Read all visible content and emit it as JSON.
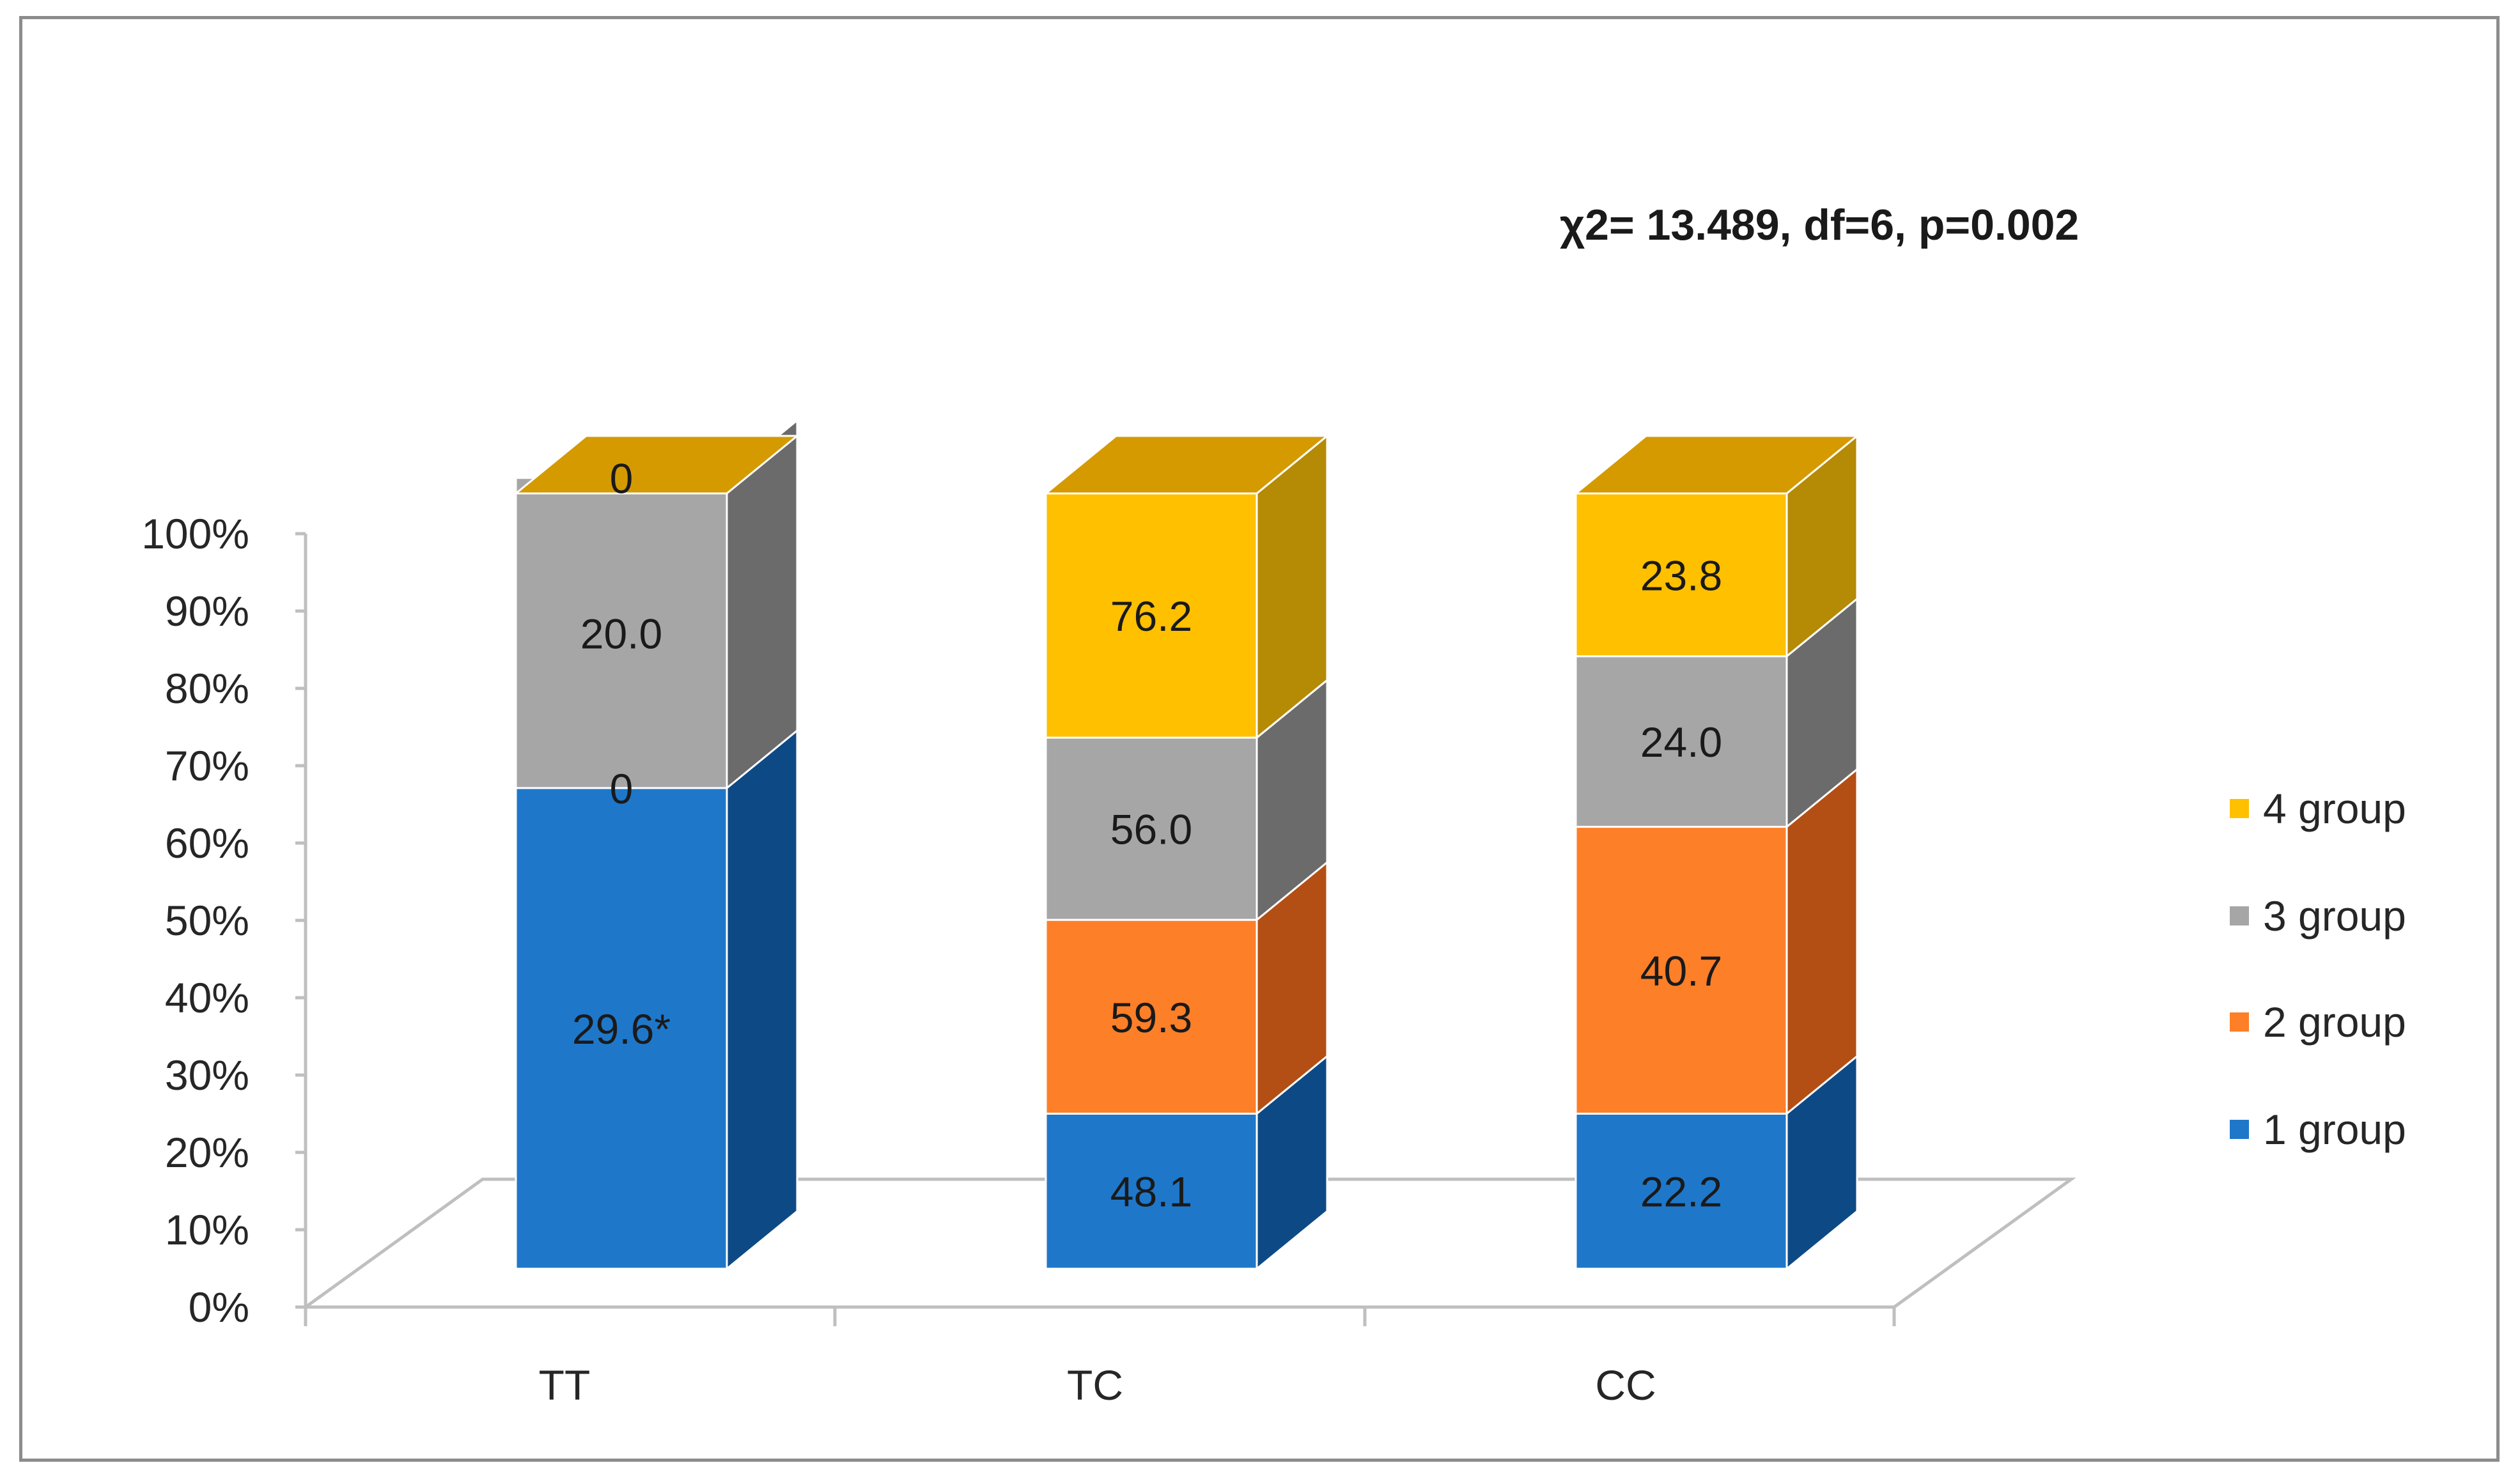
{
  "chart_data": {
    "type": "bar",
    "subtype": "stacked-100-percent-3d",
    "categories": [
      "TT",
      "TC",
      "CC"
    ],
    "series": [
      {
        "name": "1 group",
        "color": "#1f77c9",
        "side_color": "#0d4a85",
        "top_color": "#1668b0",
        "display_share": [
          62,
          20,
          20
        ],
        "labels": [
          "29.6*",
          "48.1",
          "22.2"
        ]
      },
      {
        "name": "2 group",
        "color": "#fd7f28",
        "side_color": "#b34f14",
        "top_color": "#e06f20",
        "display_share": [
          0,
          25,
          37
        ],
        "labels": [
          "0",
          "59.3",
          "40.7"
        ]
      },
      {
        "name": "3 group",
        "color": "#a6a6a6",
        "side_color": "#6b6b6b",
        "top_color": "#8f8f8f",
        "display_share": [
          40,
          23.5,
          22
        ],
        "labels": [
          "20.0",
          "56.0",
          "24.0"
        ]
      },
      {
        "name": "4 group",
        "color": "#ffc000",
        "side_color": "#b58a05",
        "top_color": "#d49a00",
        "display_share": [
          0,
          31.5,
          21
        ],
        "labels": [
          "0",
          "76.2",
          "23.8"
        ]
      }
    ],
    "y_ticks": [
      "0%",
      "10%",
      "20%",
      "30%",
      "40%",
      "50%",
      "60%",
      "70%",
      "80%",
      "90%",
      "100%"
    ],
    "ylim": [
      0,
      100
    ],
    "annotation": "χ2= 13.489, df=6, p=0.002",
    "legend_position": "right",
    "legend_order": [
      "4 group",
      "3 group",
      "2 group",
      "1 group"
    ]
  }
}
